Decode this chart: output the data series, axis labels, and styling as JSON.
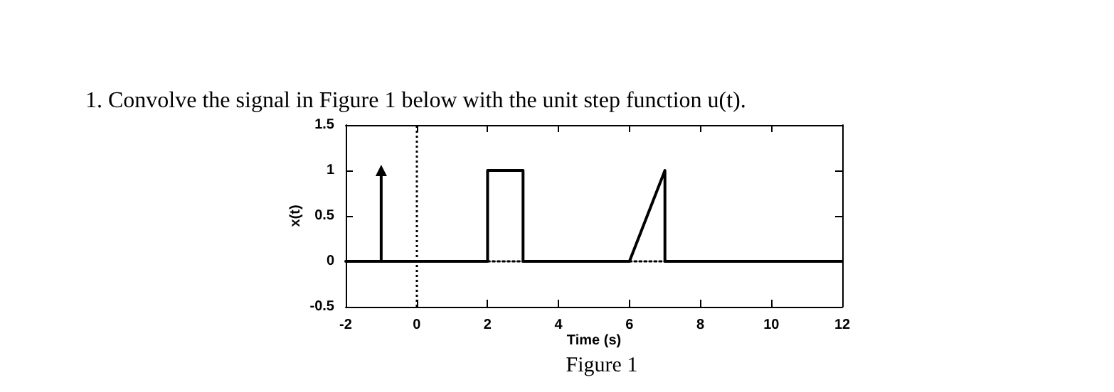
{
  "chart_data": {
    "type": "line",
    "title": "1. Convolve the signal in Figure 1 below with the unit step function u(t).",
    "xlabel": "Time (s)",
    "ylabel": "x(t)",
    "annotations": [
      "Figure 1"
    ],
    "xlim": [
      -2,
      12
    ],
    "xticks": [
      -2,
      0,
      2,
      4,
      6,
      8,
      10,
      12
    ],
    "ylim": [
      -0.5,
      1.5
    ],
    "yticks": [
      -0.5,
      0,
      0.5,
      1,
      1.5
    ],
    "grid": false,
    "series": [
      {
        "color": "#000000",
        "line_style": "solid",
        "x": [
          -2,
          2,
          2,
          3,
          3,
          6,
          7,
          7,
          12
        ],
        "values": [
          0,
          0,
          1,
          1,
          0,
          0,
          1,
          0,
          0
        ]
      },
      {
        "color": "#000000",
        "line_style": "solid",
        "marker": "triangle",
        "x": [
          -1,
          -1
        ],
        "values": [
          0,
          1
        ]
      },
      {
        "color": "#000000",
        "line_style": "dotted",
        "x": [
          2,
          3
        ],
        "values": [
          0,
          0
        ]
      },
      {
        "color": "#000000",
        "line_style": "dotted",
        "x": [
          6,
          7
        ],
        "values": [
          0,
          0
        ]
      }
    ],
    "ref_lines": [
      {
        "axis": "x",
        "value": 0,
        "color": "#000000",
        "line_style": "dotted"
      }
    ]
  }
}
